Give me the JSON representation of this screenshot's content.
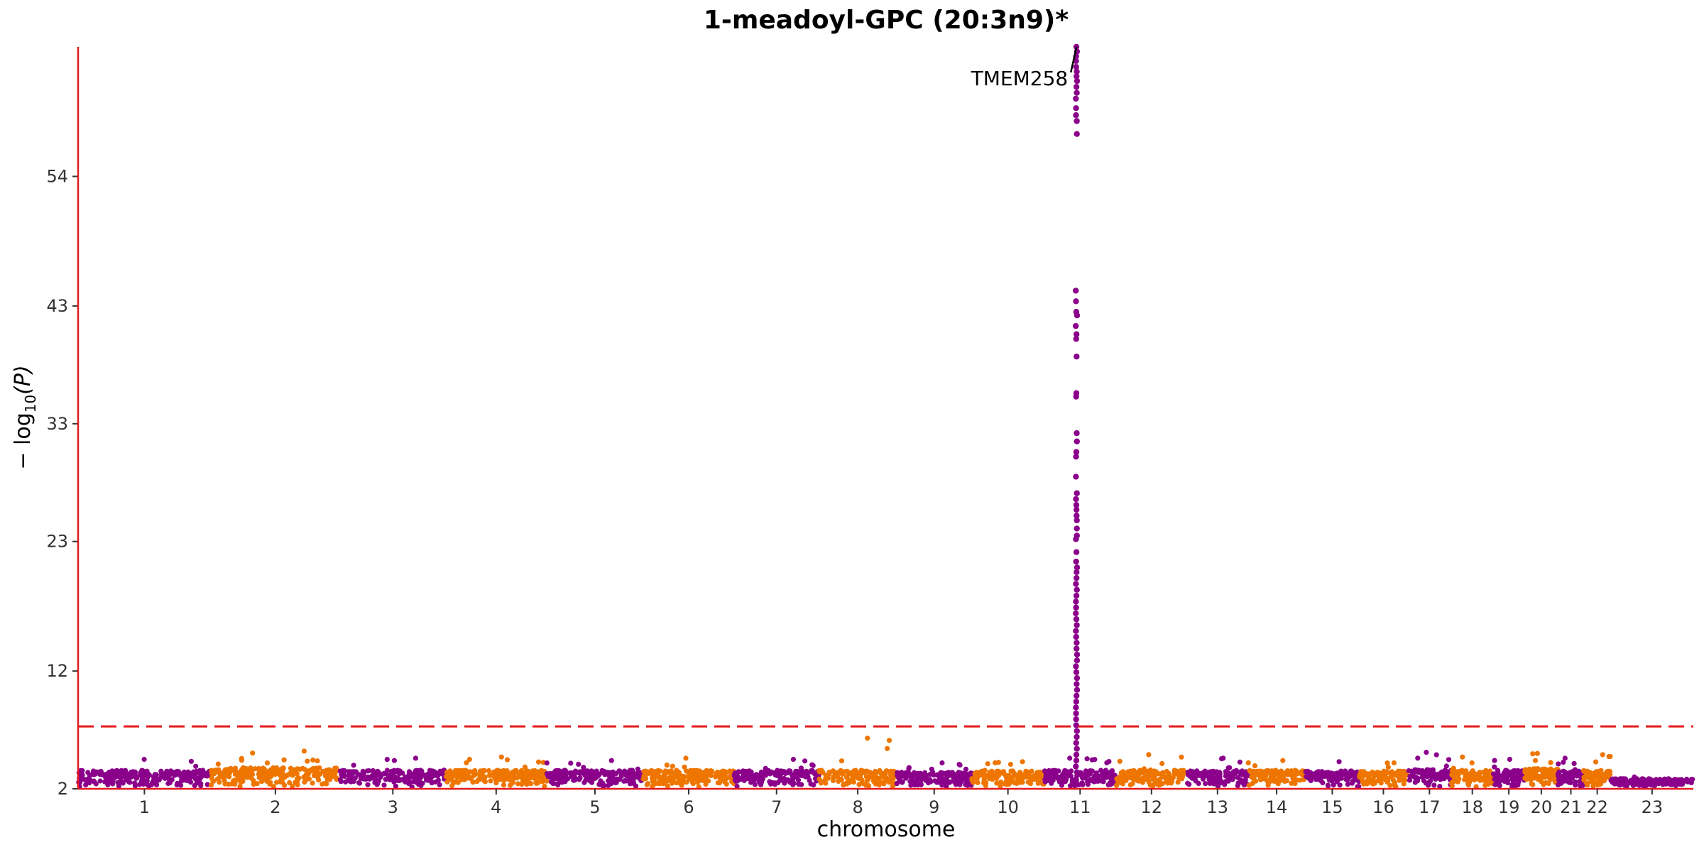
{
  "chart_data": {
    "type": "scatter",
    "subtype": "manhattan",
    "title": "1-meadoyl-GPC (20:3n9)*",
    "xlabel": "chromosome",
    "ylabel_main": "− log",
    "ylabel_sub": "10",
    "ylabel_tail": "(P)",
    "ylim": [
      2,
      65
    ],
    "yticks": [
      2,
      12,
      23,
      33,
      43,
      54
    ],
    "significance_line": 7.3,
    "axis_color": "#e41a1c",
    "series_colors": [
      "#8b008b",
      "#ee7600"
    ],
    "chromosomes": [
      {
        "label": "1",
        "len": 249,
        "color": "#8b008b",
        "base": 3.0,
        "spread": 0.7,
        "top": 4.5
      },
      {
        "label": "2",
        "len": 243,
        "color": "#ee7600",
        "base": 3.1,
        "spread": 0.9,
        "top": 5.2
      },
      {
        "label": "3",
        "len": 198,
        "color": "#8b008b",
        "base": 3.0,
        "spread": 0.7,
        "top": 4.6
      },
      {
        "label": "4",
        "len": 190,
        "color": "#ee7600",
        "base": 3.0,
        "spread": 0.7,
        "top": 4.7
      },
      {
        "label": "5",
        "len": 181,
        "color": "#8b008b",
        "base": 3.0,
        "spread": 0.7,
        "top": 4.4
      },
      {
        "label": "6",
        "len": 171,
        "color": "#ee7600",
        "base": 3.0,
        "spread": 0.7,
        "top": 4.6
      },
      {
        "label": "7",
        "len": 159,
        "color": "#8b008b",
        "base": 3.0,
        "spread": 0.7,
        "top": 4.5
      },
      {
        "label": "8",
        "len": 146,
        "color": "#ee7600",
        "base": 3.0,
        "spread": 0.7,
        "top": 6.3
      },
      {
        "label": "9",
        "len": 141,
        "color": "#8b008b",
        "base": 2.9,
        "spread": 0.6,
        "top": 4.2
      },
      {
        "label": "10",
        "len": 136,
        "color": "#ee7600",
        "base": 3.0,
        "spread": 0.6,
        "top": 4.3
      },
      {
        "label": "11",
        "len": 135,
        "color": "#8b008b",
        "base": 3.0,
        "spread": 0.7,
        "top": 4.6
      },
      {
        "label": "12",
        "len": 133,
        "color": "#ee7600",
        "base": 3.0,
        "spread": 0.7,
        "top": 4.9
      },
      {
        "label": "13",
        "len": 115,
        "color": "#8b008b",
        "base": 3.0,
        "spread": 0.7,
        "top": 4.6
      },
      {
        "label": "14",
        "len": 107,
        "color": "#ee7600",
        "base": 3.0,
        "spread": 0.7,
        "top": 4.4
      },
      {
        "label": "15",
        "len": 102,
        "color": "#8b008b",
        "base": 3.0,
        "spread": 0.6,
        "top": 4.3
      },
      {
        "label": "16",
        "len": 90,
        "color": "#ee7600",
        "base": 3.0,
        "spread": 0.6,
        "top": 4.2
      },
      {
        "label": "17",
        "len": 83,
        "color": "#8b008b",
        "base": 3.0,
        "spread": 0.8,
        "top": 5.1
      },
      {
        "label": "18",
        "len": 78,
        "color": "#ee7600",
        "base": 3.0,
        "spread": 0.7,
        "top": 4.7
      },
      {
        "label": "19",
        "len": 59,
        "color": "#8b008b",
        "base": 3.0,
        "spread": 0.7,
        "top": 4.5
      },
      {
        "label": "20",
        "len": 63,
        "color": "#ee7600",
        "base": 3.1,
        "spread": 0.8,
        "top": 5.0
      },
      {
        "label": "21",
        "len": 48,
        "color": "#8b008b",
        "base": 3.0,
        "spread": 0.6,
        "top": 4.6
      },
      {
        "label": "22",
        "len": 51,
        "color": "#ee7600",
        "base": 3.0,
        "spread": 0.7,
        "top": 4.9
      },
      {
        "label": "23",
        "len": 155,
        "color": "#8b008b",
        "base": 2.5,
        "spread": 0.35,
        "top": 3.0
      }
    ],
    "peak": {
      "chromosome": "11",
      "position_fraction": 0.45,
      "values": [
        65,
        64.6,
        64.2,
        63.8,
        63.3,
        62.9,
        62.5,
        62.1,
        61.6,
        61.1,
        60.6,
        59.8,
        59.2,
        58.7,
        57.6,
        44.3,
        43.4,
        42.5,
        42.2,
        41.3,
        40.6,
        40.2,
        38.7,
        35.6,
        35.3,
        32.2,
        31.5,
        30.6,
        30.2,
        28.5,
        27.1,
        26.6,
        26.1,
        25.7,
        25.2,
        24.8,
        24.1,
        23.5,
        23.2,
        22.1,
        21.3,
        20.8,
        20.4,
        19.9,
        19.4,
        18.9,
        18.4,
        17.9,
        17.4,
        16.9,
        16.4,
        15.9,
        15.4,
        14.9,
        14.4,
        13.9,
        13.4,
        12.9,
        12.4,
        11.9,
        11.4,
        10.9,
        10.4,
        9.9,
        9.4,
        8.9,
        8.4,
        7.9,
        7.4,
        6.9,
        6.4,
        5.9,
        5.4,
        4.9,
        4.4,
        3.9,
        3.4
      ]
    },
    "annotations": [
      {
        "text": "TMEM258",
        "chromosome": "11",
        "y": 65
      }
    ]
  }
}
